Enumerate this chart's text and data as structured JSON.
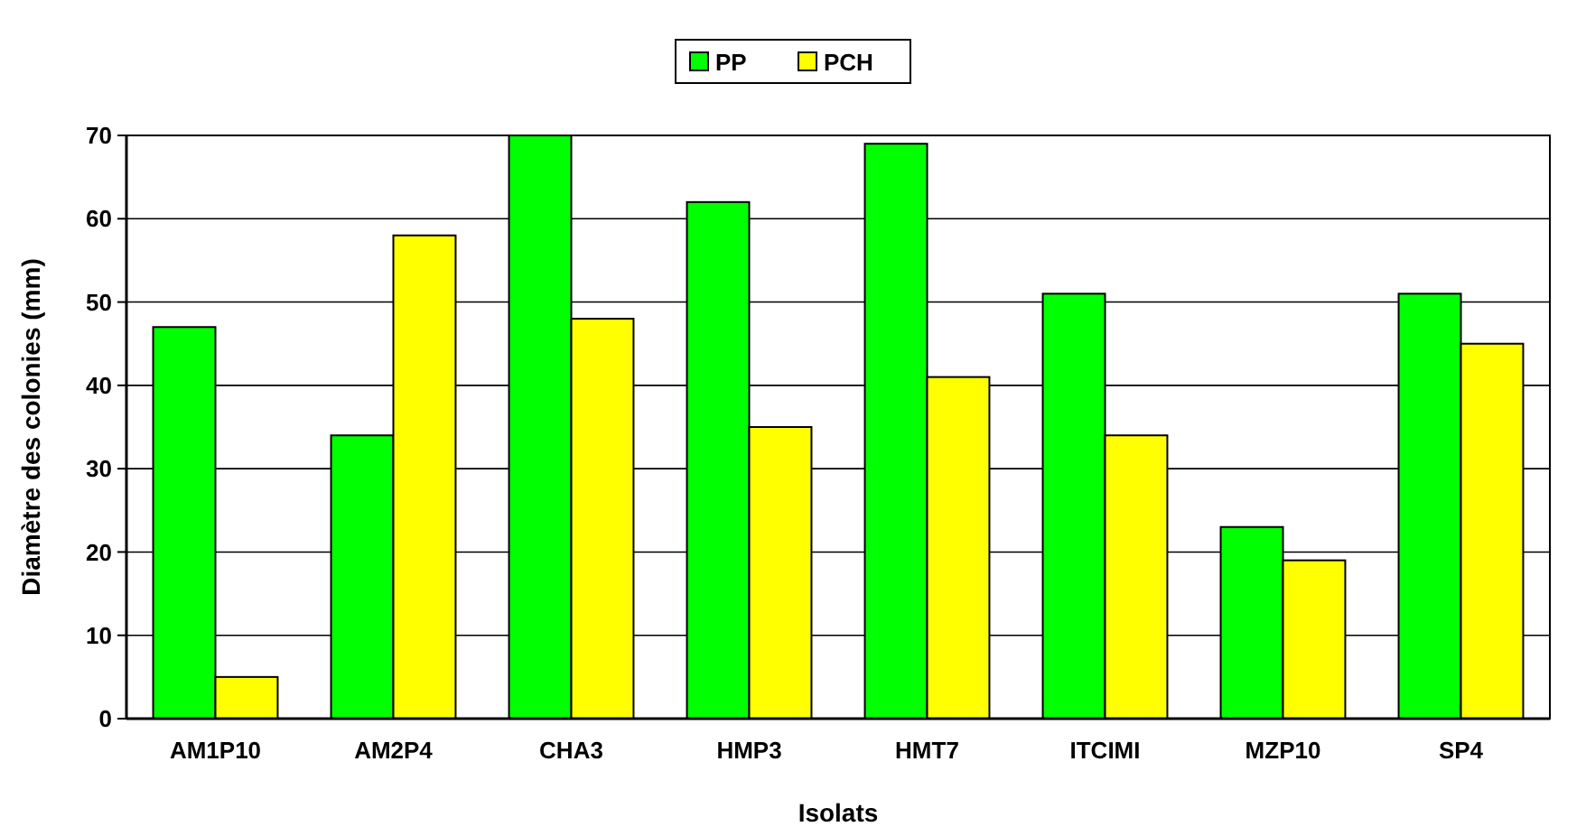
{
  "chart_data": {
    "type": "bar",
    "xlabel": "Isolats",
    "ylabel": "Diamètre des colonies (mm)",
    "categories": [
      "AM1P10",
      "AM2P4",
      "CHA3",
      "HMP3",
      "HMT7",
      "ITCIMI",
      "MZP10",
      "SP4"
    ],
    "series": [
      {
        "name": "PP",
        "color": "#00ff00",
        "values": [
          47,
          34,
          70,
          62,
          69,
          51,
          23,
          51
        ]
      },
      {
        "name": "PCH",
        "color": "#ffff00",
        "values": [
          5,
          58,
          48,
          35,
          41,
          34,
          19,
          45
        ]
      }
    ],
    "ylim": [
      0,
      70
    ],
    "yticks": [
      0,
      10,
      20,
      30,
      40,
      50,
      60,
      70
    ],
    "grid": "y",
    "legend": "top"
  }
}
